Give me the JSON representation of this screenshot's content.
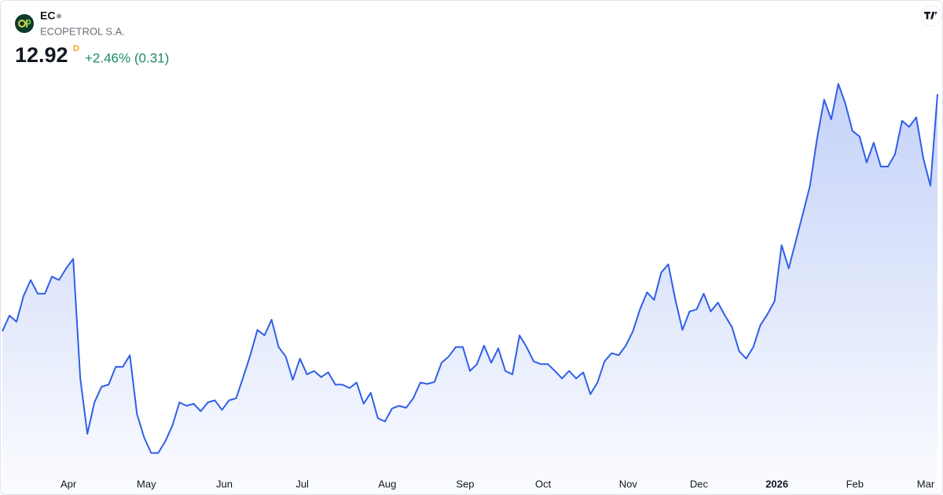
{
  "chart_data": {
    "type": "area",
    "title": "EC",
    "subtitle": "ECOPETROL S.A.",
    "price": 12.92,
    "interval": "D",
    "change": "+2.46% (0.31)",
    "color": "#2f5fe8",
    "change_color": "#1e8a62",
    "grid": false,
    "ylim": [
      7.4,
      13.4
    ],
    "categories": [
      null,
      null,
      null,
      null,
      null,
      null,
      null,
      null,
      null,
      "Apr",
      null,
      null,
      null,
      null,
      null,
      null,
      null,
      null,
      null,
      null,
      "May",
      null,
      null,
      null,
      null,
      null,
      null,
      null,
      null,
      null,
      null,
      "Jun",
      null,
      null,
      null,
      null,
      null,
      null,
      null,
      null,
      null,
      null,
      "Jul",
      null,
      null,
      null,
      null,
      null,
      null,
      null,
      null,
      null,
      null,
      null,
      "Aug",
      null,
      null,
      null,
      null,
      null,
      null,
      null,
      null,
      null,
      null,
      "Sep",
      null,
      null,
      null,
      null,
      null,
      null,
      null,
      null,
      null,
      null,
      "Oct",
      null,
      null,
      null,
      null,
      null,
      null,
      null,
      null,
      null,
      null,
      null,
      "Nov",
      null,
      null,
      null,
      null,
      null,
      null,
      null,
      null,
      null,
      "Dec",
      null,
      null,
      null,
      null,
      null,
      null,
      null,
      null,
      null,
      null,
      "2026",
      null,
      null,
      null,
      null,
      null,
      null,
      null,
      null,
      null,
      null,
      "Feb",
      null,
      null,
      null,
      null,
      null,
      null,
      null,
      null,
      null,
      "Mar",
      null,
      null
    ],
    "values": [
      9.45,
      9.68,
      9.59,
      9.97,
      10.2,
      10.0,
      10.0,
      10.25,
      10.2,
      10.37,
      10.51,
      8.76,
      7.95,
      8.41,
      8.64,
      8.67,
      8.93,
      8.93,
      9.1,
      8.24,
      7.9,
      7.67,
      7.67,
      7.84,
      8.07,
      8.41,
      8.36,
      8.39,
      8.28,
      8.41,
      8.44,
      8.3,
      8.44,
      8.47,
      8.78,
      9.1,
      9.47,
      9.39,
      9.62,
      9.22,
      9.08,
      8.74,
      9.05,
      8.82,
      8.87,
      8.78,
      8.85,
      8.67,
      8.67,
      8.62,
      8.7,
      8.39,
      8.55,
      8.18,
      8.13,
      8.32,
      8.36,
      8.33,
      8.47,
      8.7,
      8.68,
      8.71,
      8.99,
      9.08,
      9.22,
      9.22,
      8.87,
      8.97,
      9.24,
      8.99,
      9.2,
      8.87,
      8.82,
      9.39,
      9.22,
      9.01,
      8.97,
      8.97,
      8.87,
      8.76,
      8.87,
      8.76,
      8.85,
      8.53,
      8.7,
      9.01,
      9.13,
      9.1,
      9.24,
      9.45,
      9.77,
      10.02,
      9.91,
      10.31,
      10.43,
      9.91,
      9.47,
      9.74,
      9.77,
      10.0,
      9.74,
      9.87,
      9.68,
      9.51,
      9.16,
      9.05,
      9.22,
      9.54,
      9.7,
      9.89,
      10.71,
      10.37,
      10.77,
      11.17,
      11.58,
      12.27,
      12.84,
      12.55,
      13.07,
      12.78,
      12.38,
      12.3,
      11.92,
      12.21,
      11.86,
      11.86,
      12.04,
      12.53,
      12.44,
      12.58,
      11.98,
      11.58,
      12.92
    ]
  }
}
